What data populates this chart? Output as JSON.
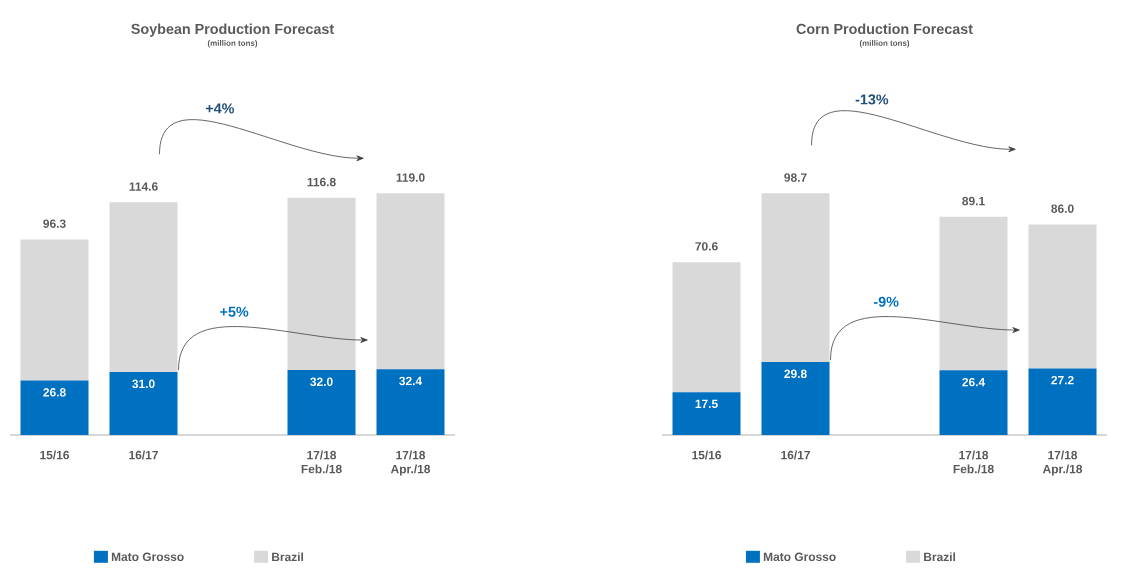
{
  "chart_data": [
    {
      "type": "bar",
      "title": "Soybean Production Forecast",
      "subtitle": "(million tons)",
      "categories": [
        "15/16",
        "16/17",
        null,
        "17/18 Feb./18",
        "17/18 Apr./18"
      ],
      "stacked": true,
      "series": [
        {
          "name": "Mato Grosso",
          "color": "#0070c0",
          "values": [
            26.8,
            31.0,
            null,
            32.0,
            32.4
          ],
          "value_labels": [
            "26.8",
            "31.0",
            null,
            "32.0",
            "32.4"
          ]
        },
        {
          "name": "Brazil",
          "color": "#d9d9d9",
          "values": [
            69.5,
            83.6,
            null,
            84.8,
            86.6
          ]
        }
      ],
      "totals": [
        "96.3",
        "114.6",
        null,
        "116.8",
        "119.0"
      ],
      "legend": "bottom",
      "annotations": [
        "+4%",
        "+5%"
      ]
    },
    {
      "type": "bar",
      "title": "Corn Production Forecast",
      "subtitle": "(million tons)",
      "categories": [
        "15/16",
        "16/17",
        null,
        "17/18 Feb./18",
        "17/18 Apr./18"
      ],
      "stacked": true,
      "series": [
        {
          "name": "Mato Grosso",
          "color": "#0070c0",
          "values": [
            17.5,
            29.8,
            null,
            26.4,
            27.2
          ],
          "value_labels": [
            "17.5",
            "29.8",
            null,
            "26.4",
            "27.2"
          ]
        },
        {
          "name": "Brazil",
          "color": "#d9d9d9",
          "values": [
            53.1,
            68.9,
            null,
            62.7,
            58.8
          ]
        }
      ],
      "totals": [
        "70.6",
        "98.7",
        null,
        "89.1",
        "86.0"
      ],
      "legend": "bottom",
      "annotations": [
        "-13%",
        "-9%"
      ]
    }
  ]
}
